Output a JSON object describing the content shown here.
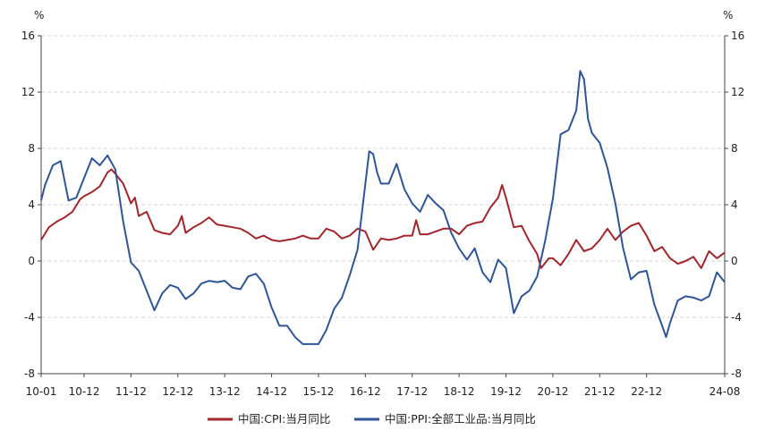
{
  "chart_data": {
    "type": "line",
    "y_unit_left": "%",
    "y_unit_right": "%",
    "ylim": [
      -8,
      16
    ],
    "yticks": [
      -8,
      -4,
      0,
      4,
      8,
      12,
      16
    ],
    "grid": "horizontal dashed",
    "legend_position": "bottom",
    "x_range": [
      "2010-01",
      "2024-08"
    ],
    "x_tick_labels": [
      "10-01",
      "10-12",
      "11-12",
      "12-12",
      "13-12",
      "14-12",
      "15-12",
      "16-12",
      "17-12",
      "18-12",
      "19-12",
      "20-12",
      "21-12",
      "22-12",
      "24-08"
    ],
    "x_tick_months": [
      0,
      11,
      23,
      35,
      47,
      59,
      71,
      83,
      95,
      107,
      119,
      131,
      143,
      155,
      175
    ],
    "series": [
      {
        "name": "中国:CPI:当月同比",
        "color": "#a0262c",
        "points": [
          [
            0,
            1.5
          ],
          [
            2,
            2.4
          ],
          [
            4,
            2.8
          ],
          [
            6,
            3.1
          ],
          [
            8,
            3.5
          ],
          [
            10,
            4.4
          ],
          [
            11,
            4.6
          ],
          [
            13,
            4.9
          ],
          [
            15,
            5.3
          ],
          [
            17,
            6.3
          ],
          [
            18,
            6.5
          ],
          [
            19,
            6.2
          ],
          [
            21,
            5.5
          ],
          [
            23,
            4.1
          ],
          [
            24,
            4.5
          ],
          [
            25,
            3.2
          ],
          [
            27,
            3.5
          ],
          [
            29,
            2.2
          ],
          [
            31,
            2.0
          ],
          [
            33,
            1.9
          ],
          [
            35,
            2.5
          ],
          [
            36,
            3.2
          ],
          [
            37,
            2.0
          ],
          [
            39,
            2.4
          ],
          [
            41,
            2.7
          ],
          [
            43,
            3.1
          ],
          [
            45,
            2.6
          ],
          [
            47,
            2.5
          ],
          [
            49,
            2.4
          ],
          [
            51,
            2.3
          ],
          [
            53,
            2.0
          ],
          [
            55,
            1.6
          ],
          [
            57,
            1.8
          ],
          [
            59,
            1.5
          ],
          [
            61,
            1.4
          ],
          [
            63,
            1.5
          ],
          [
            65,
            1.6
          ],
          [
            67,
            1.8
          ],
          [
            69,
            1.6
          ],
          [
            71,
            1.6
          ],
          [
            73,
            2.3
          ],
          [
            75,
            2.1
          ],
          [
            77,
            1.6
          ],
          [
            79,
            1.8
          ],
          [
            81,
            2.3
          ],
          [
            83,
            2.1
          ],
          [
            85,
            0.8
          ],
          [
            87,
            1.6
          ],
          [
            89,
            1.5
          ],
          [
            91,
            1.6
          ],
          [
            93,
            1.8
          ],
          [
            95,
            1.8
          ],
          [
            96,
            2.9
          ],
          [
            97,
            1.9
          ],
          [
            99,
            1.9
          ],
          [
            101,
            2.1
          ],
          [
            103,
            2.3
          ],
          [
            105,
            2.3
          ],
          [
            107,
            1.9
          ],
          [
            109,
            2.5
          ],
          [
            111,
            2.7
          ],
          [
            113,
            2.8
          ],
          [
            115,
            3.8
          ],
          [
            117,
            4.5
          ],
          [
            118,
            5.4
          ],
          [
            119,
            4.5
          ],
          [
            121,
            2.4
          ],
          [
            123,
            2.5
          ],
          [
            125,
            1.4
          ],
          [
            127,
            0.5
          ],
          [
            128,
            -0.5
          ],
          [
            130,
            0.2
          ],
          [
            131,
            0.2
          ],
          [
            133,
            -0.3
          ],
          [
            135,
            0.5
          ],
          [
            137,
            1.5
          ],
          [
            139,
            0.7
          ],
          [
            141,
            0.9
          ],
          [
            143,
            1.5
          ],
          [
            145,
            2.3
          ],
          [
            147,
            1.5
          ],
          [
            149,
            2.1
          ],
          [
            151,
            2.5
          ],
          [
            153,
            2.7
          ],
          [
            155,
            1.8
          ],
          [
            157,
            0.7
          ],
          [
            159,
            1.0
          ],
          [
            161,
            0.2
          ],
          [
            163,
            -0.2
          ],
          [
            165,
            0.0
          ],
          [
            167,
            0.3
          ],
          [
            169,
            -0.5
          ],
          [
            171,
            0.7
          ],
          [
            173,
            0.2
          ],
          [
            175,
            0.6
          ]
        ]
      },
      {
        "name": "中国:PPI:全部工业品:当月同比",
        "color": "#2f5597",
        "points": [
          [
            0,
            4.3
          ],
          [
            1,
            5.4
          ],
          [
            3,
            6.8
          ],
          [
            5,
            7.1
          ],
          [
            7,
            4.3
          ],
          [
            9,
            4.5
          ],
          [
            11,
            5.9
          ],
          [
            13,
            7.3
          ],
          [
            15,
            6.8
          ],
          [
            17,
            7.5
          ],
          [
            19,
            6.5
          ],
          [
            21,
            2.8
          ],
          [
            23,
            -0.1
          ],
          [
            25,
            -0.7
          ],
          [
            27,
            -2.1
          ],
          [
            29,
            -3.5
          ],
          [
            31,
            -2.3
          ],
          [
            33,
            -1.7
          ],
          [
            35,
            -1.9
          ],
          [
            37,
            -2.7
          ],
          [
            39,
            -2.3
          ],
          [
            41,
            -1.6
          ],
          [
            43,
            -1.4
          ],
          [
            45,
            -1.5
          ],
          [
            47,
            -1.4
          ],
          [
            49,
            -1.9
          ],
          [
            51,
            -2.0
          ],
          [
            53,
            -1.1
          ],
          [
            55,
            -0.9
          ],
          [
            57,
            -1.6
          ],
          [
            59,
            -3.3
          ],
          [
            61,
            -4.6
          ],
          [
            63,
            -4.6
          ],
          [
            65,
            -5.4
          ],
          [
            67,
            -5.9
          ],
          [
            69,
            -5.9
          ],
          [
            71,
            -5.9
          ],
          [
            73,
            -4.9
          ],
          [
            75,
            -3.4
          ],
          [
            77,
            -2.6
          ],
          [
            79,
            -1.0
          ],
          [
            81,
            0.8
          ],
          [
            83,
            5.5
          ],
          [
            84,
            7.8
          ],
          [
            85,
            7.6
          ],
          [
            86,
            6.3
          ],
          [
            87,
            5.5
          ],
          [
            89,
            5.5
          ],
          [
            91,
            6.9
          ],
          [
            93,
            5.1
          ],
          [
            95,
            4.1
          ],
          [
            97,
            3.5
          ],
          [
            99,
            4.7
          ],
          [
            101,
            4.1
          ],
          [
            103,
            3.6
          ],
          [
            105,
            2.0
          ],
          [
            107,
            0.9
          ],
          [
            109,
            0.1
          ],
          [
            111,
            0.9
          ],
          [
            113,
            -0.8
          ],
          [
            115,
            -1.5
          ],
          [
            117,
            0.1
          ],
          [
            119,
            -0.5
          ],
          [
            121,
            -3.7
          ],
          [
            123,
            -2.5
          ],
          [
            125,
            -2.1
          ],
          [
            127,
            -1.1
          ],
          [
            129,
            1.4
          ],
          [
            131,
            4.4
          ],
          [
            133,
            9.0
          ],
          [
            135,
            9.3
          ],
          [
            137,
            10.7
          ],
          [
            138,
            13.5
          ],
          [
            139,
            12.9
          ],
          [
            140,
            10.1
          ],
          [
            141,
            9.1
          ],
          [
            143,
            8.4
          ],
          [
            145,
            6.6
          ],
          [
            147,
            4.1
          ],
          [
            149,
            0.9
          ],
          [
            151,
            -1.3
          ],
          [
            153,
            -0.8
          ],
          [
            155,
            -0.7
          ],
          [
            157,
            -3.1
          ],
          [
            159,
            -4.6
          ],
          [
            160,
            -5.4
          ],
          [
            161,
            -4.4
          ],
          [
            163,
            -2.8
          ],
          [
            165,
            -2.5
          ],
          [
            167,
            -2.6
          ],
          [
            169,
            -2.8
          ],
          [
            171,
            -2.5
          ],
          [
            173,
            -0.8
          ],
          [
            175,
            -1.5
          ]
        ]
      }
    ]
  }
}
